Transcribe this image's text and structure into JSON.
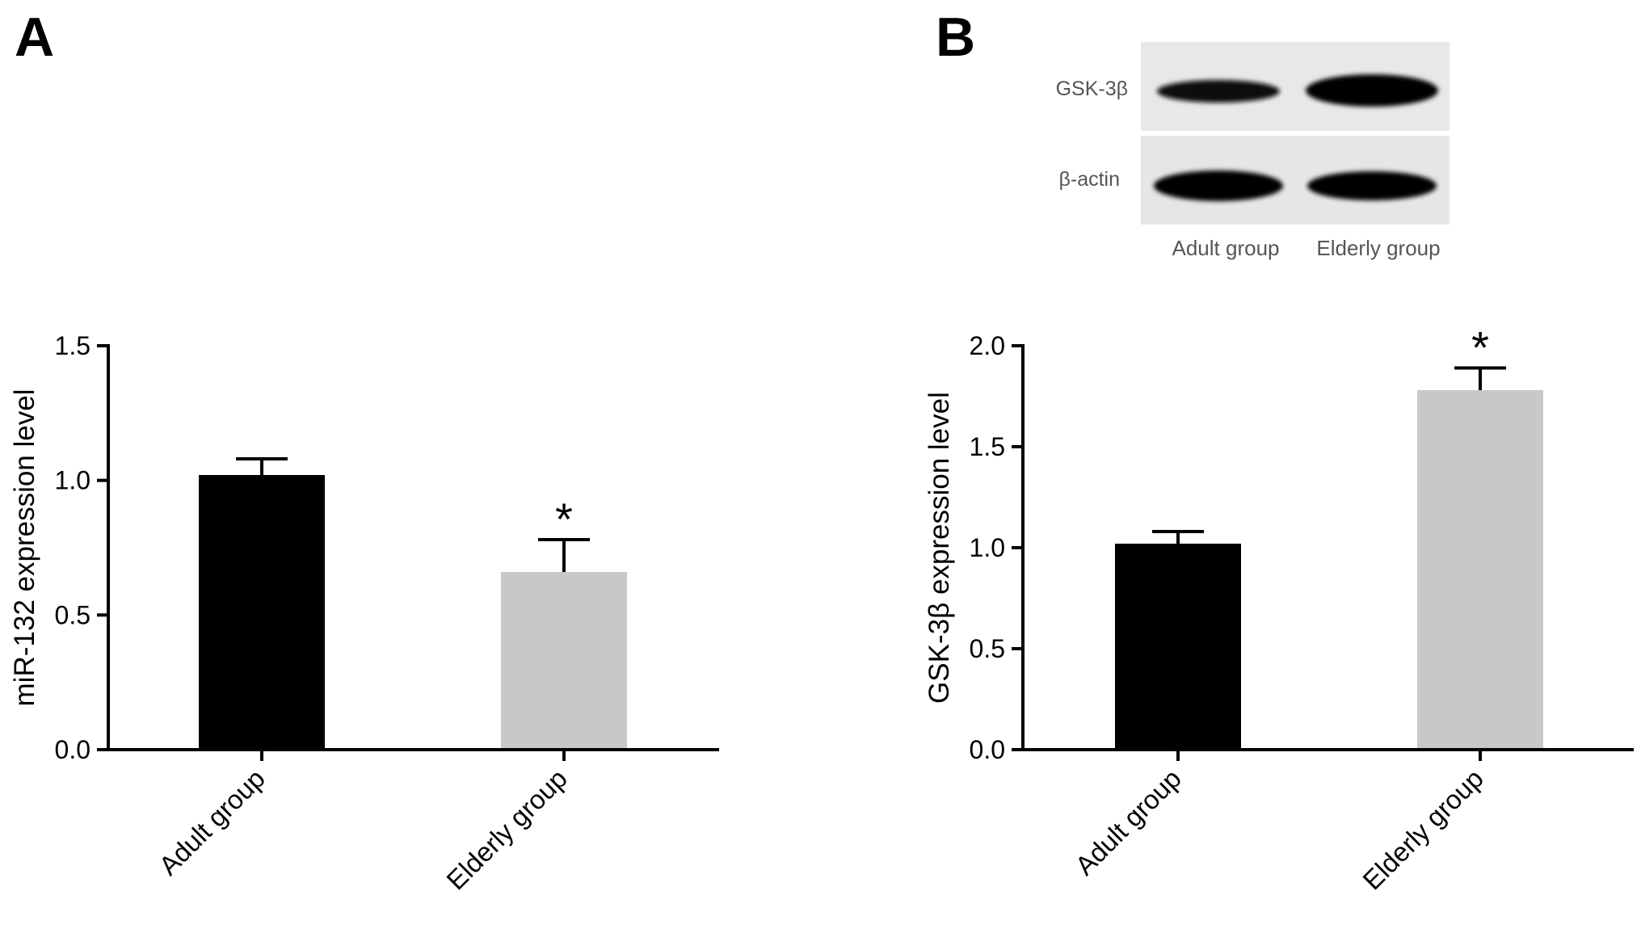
{
  "panels": {
    "a_label": "A",
    "b_label": "B"
  },
  "blot": {
    "rows": [
      "GSK-3β",
      "β-actin"
    ],
    "lanes": [
      "Adult group",
      "Elderly group"
    ]
  },
  "chart_data": [
    {
      "type": "bar",
      "panel": "A",
      "title": "",
      "xlabel": "",
      "ylabel": "miR-132 expression level",
      "categories": [
        "Adult group",
        "Elderly group"
      ],
      "values": [
        1.02,
        0.66
      ],
      "errors": [
        0.06,
        0.12
      ],
      "colors": [
        "#000000",
        "#c8c8c8"
      ],
      "significance": [
        "",
        "*"
      ],
      "ylim": [
        0,
        1.5
      ],
      "yticks": [
        "0.0",
        "0.5",
        "1.0",
        "1.5"
      ],
      "grid": false
    },
    {
      "type": "bar",
      "panel": "B",
      "title": "",
      "xlabel": "",
      "ylabel": "GSK-3β expression level",
      "categories": [
        "Adult group",
        "Elderly group"
      ],
      "values": [
        1.02,
        1.78
      ],
      "errors": [
        0.06,
        0.11
      ],
      "colors": [
        "#000000",
        "#c8c8c8"
      ],
      "significance": [
        "",
        "*"
      ],
      "ylim": [
        0,
        2.0
      ],
      "yticks": [
        "0.0",
        "0.5",
        "1.0",
        "1.5",
        "2.0"
      ],
      "grid": false
    }
  ]
}
